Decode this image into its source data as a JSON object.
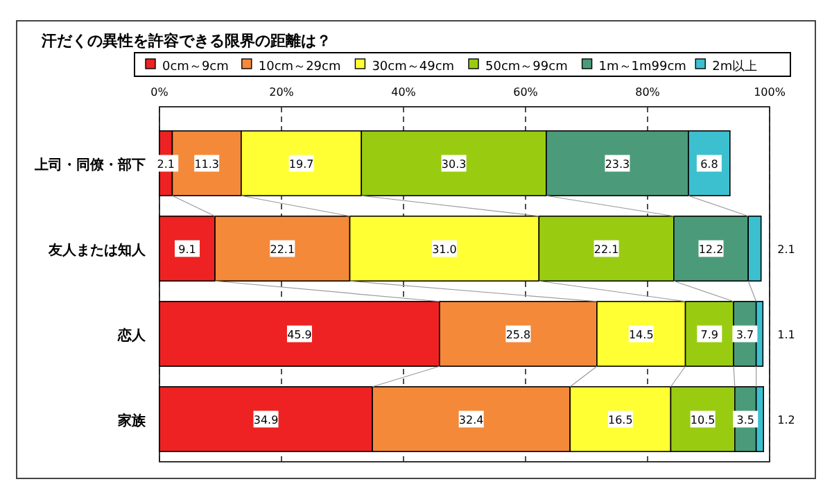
{
  "chart_data": {
    "type": "bar",
    "orientation": "horizontal",
    "stacked": true,
    "title": "汗だくの異性を許容できる限界の距離は？",
    "categories": [
      "上司・同僚・部下",
      "友人または知人",
      "恋人",
      "家族"
    ],
    "series": [
      {
        "name": "0cm～9cm",
        "color": "#ee2222",
        "values": [
          2.1,
          9.1,
          45.9,
          34.9
        ]
      },
      {
        "name": "10cm～29cm",
        "color": "#f4893a",
        "values": [
          11.3,
          22.1,
          25.8,
          32.4
        ]
      },
      {
        "name": "30cm～49cm",
        "color": "#ffff33",
        "values": [
          19.7,
          31.0,
          14.5,
          16.5
        ]
      },
      {
        "name": "50cm～99cm",
        "color": "#99cc11",
        "values": [
          30.3,
          22.1,
          7.9,
          10.5
        ]
      },
      {
        "name": "1m～1m99cm",
        "color": "#4b9b7a",
        "values": [
          23.3,
          12.2,
          3.7,
          3.5
        ]
      },
      {
        "name": "2m以上",
        "color": "#3cc0cf",
        "values": [
          6.8,
          2.1,
          1.1,
          1.2
        ]
      }
    ],
    "xlim": [
      0,
      100
    ],
    "xticks": [
      {
        "value": 0,
        "label": "0%"
      },
      {
        "value": 20,
        "label": "20%"
      },
      {
        "value": 40,
        "label": "40%"
      },
      {
        "value": 60,
        "label": "60%"
      },
      {
        "value": 80,
        "label": "80%"
      },
      {
        "value": 100,
        "label": "100%"
      }
    ],
    "value_labels": [
      [
        "2.1",
        "9.1",
        "45.9",
        "34.9"
      ],
      [
        "11.3",
        "22.1",
        "25.8",
        "32.4"
      ],
      [
        "19.7",
        "31.0",
        "14.5",
        "16.5"
      ],
      [
        "30.3",
        "22.1",
        "7.9",
        "10.5"
      ],
      [
        "23.3",
        "12.2",
        "3.7",
        "3.5"
      ],
      [
        "6.8",
        "2.1",
        "1.1",
        "1.2"
      ]
    ],
    "grid": "x",
    "legend": "top"
  }
}
